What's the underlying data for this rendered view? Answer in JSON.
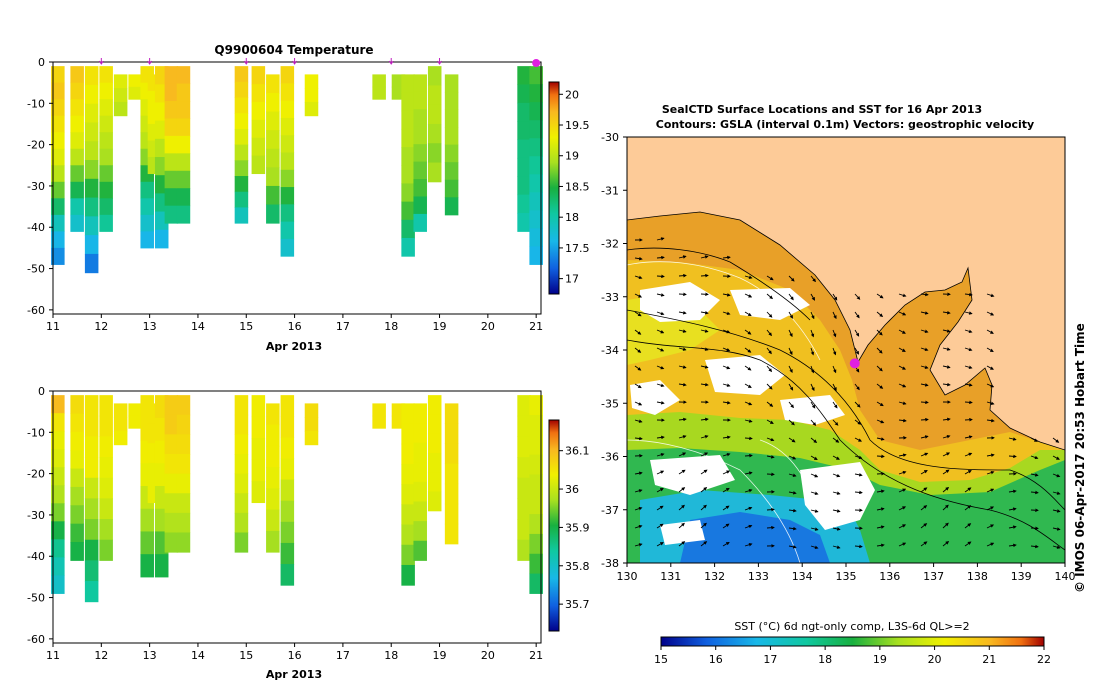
{
  "chart_data": [
    {
      "type": "heatmap",
      "title": "Q9900604  Temperature",
      "xlabel": "Apr 2013",
      "ylabel": "",
      "xlim": [
        11,
        21.1
      ],
      "ylim": [
        -61,
        0
      ],
      "x_ticks": [
        11,
        12,
        13,
        14,
        15,
        16,
        17,
        18,
        19,
        20,
        21
      ],
      "y_ticks": [
        0,
        -10,
        -20,
        -30,
        -40,
        -50,
        -60
      ],
      "profile_markers_x": [
        12,
        13,
        15,
        16,
        18,
        19,
        21
      ],
      "colorbar": {
        "min": 16.75,
        "max": 20.2,
        "ticks": [
          17,
          17.5,
          18,
          18.5,
          19,
          19.5,
          20
        ]
      },
      "profiles": [
        {
          "x": 11.1,
          "top": -1,
          "bottom": -49,
          "values": [
            19.5,
            19.6,
            19.5,
            19.4,
            19.3,
            19.2,
            19.0,
            18.7,
            18.3,
            17.9,
            17.6,
            17.4
          ]
        },
        {
          "x": 11.5,
          "top": -1,
          "bottom": -41,
          "values": [
            19.6,
            19.5,
            19.4,
            19.3,
            19.2,
            19.0,
            18.7,
            18.4,
            18.0,
            17.8
          ]
        },
        {
          "x": 11.8,
          "top": -1,
          "bottom": -51,
          "values": [
            19.4,
            19.3,
            19.2,
            19.1,
            19.0,
            18.8,
            18.5,
            18.2,
            17.9,
            17.6,
            17.3
          ]
        },
        {
          "x": 12.1,
          "top": -1,
          "bottom": -41,
          "values": [
            19.4,
            19.3,
            19.2,
            19.1,
            19.0,
            18.9,
            18.7,
            18.5,
            18.3,
            18.1
          ]
        },
        {
          "x": 12.4,
          "top": -3,
          "bottom": -13,
          "values": [
            19.2,
            19.1,
            19.0
          ]
        },
        {
          "x": 12.7,
          "top": -3,
          "bottom": -9,
          "values": [
            19.3,
            19.2
          ]
        },
        {
          "x": 12.95,
          "top": -1,
          "bottom": -45,
          "values": [
            19.4,
            19.3,
            19.2,
            19.1,
            19.0,
            18.8,
            18.5,
            18.2,
            18.0,
            17.8,
            17.6
          ]
        },
        {
          "x": 13.1,
          "top": -3,
          "bottom": -27,
          "values": [
            19.4,
            19.3,
            19.3,
            19.2,
            19.1,
            19.0
          ]
        },
        {
          "x": 13.25,
          "top": -1,
          "bottom": -45,
          "values": [
            19.5,
            19.4,
            19.3,
            19.2,
            19.0,
            18.8,
            18.5,
            18.2,
            17.9,
            17.6
          ]
        },
        {
          "x": 13.45,
          "top": -1,
          "bottom": -39,
          "values": [
            19.7,
            19.7,
            19.6,
            19.5,
            19.3,
            19.0,
            18.7,
            18.4,
            18.2
          ]
        },
        {
          "x": 13.7,
          "top": -1,
          "bottom": -39,
          "values": [
            19.7,
            19.6,
            19.6,
            19.5,
            19.3,
            19.0,
            18.7,
            18.4,
            18.2
          ]
        },
        {
          "x": 14.9,
          "top": -1,
          "bottom": -39,
          "values": [
            19.6,
            19.5,
            19.4,
            19.3,
            19.2,
            19.0,
            18.8,
            18.5,
            18.2,
            17.9
          ]
        },
        {
          "x": 15.25,
          "top": -1,
          "bottom": -27,
          "values": [
            19.5,
            19.4,
            19.3,
            19.2,
            19.1,
            19.0
          ]
        },
        {
          "x": 15.55,
          "top": -3,
          "bottom": -39,
          "values": [
            19.4,
            19.3,
            19.2,
            19.1,
            19.0,
            18.9,
            18.6,
            18.3
          ]
        },
        {
          "x": 15.85,
          "top": -1,
          "bottom": -47,
          "values": [
            19.5,
            19.4,
            19.3,
            19.2,
            19.1,
            19.0,
            18.8,
            18.5,
            18.2,
            18.0,
            17.8
          ]
        },
        {
          "x": 16.35,
          "top": -3,
          "bottom": -13,
          "values": [
            19.3,
            19.3,
            19.2
          ]
        },
        {
          "x": 17.75,
          "top": -3,
          "bottom": -9,
          "values": [
            19.0,
            19.0
          ]
        },
        {
          "x": 18.15,
          "top": -3,
          "bottom": -9,
          "values": [
            18.9,
            18.9
          ]
        },
        {
          "x": 18.35,
          "top": -3,
          "bottom": -47,
          "values": [
            19.0,
            19.0,
            19.0,
            19.0,
            18.9,
            18.9,
            18.8,
            18.6,
            18.3,
            18.0
          ]
        },
        {
          "x": 18.6,
          "top": -3,
          "bottom": -41,
          "values": [
            19.0,
            19.0,
            18.9,
            18.9,
            18.8,
            18.7,
            18.6,
            18.4,
            18.0
          ]
        },
        {
          "x": 18.9,
          "top": -1,
          "bottom": -29,
          "values": [
            18.9,
            19.0,
            19.0,
            18.9,
            18.8,
            18.9
          ]
        },
        {
          "x": 19.25,
          "top": -3,
          "bottom": -37,
          "values": [
            18.9,
            18.9,
            18.9,
            18.9,
            18.8,
            18.7,
            18.6,
            18.4
          ]
        },
        {
          "x": 20.75,
          "top": -1,
          "bottom": -41,
          "values": [
            18.5,
            18.4,
            18.3,
            18.3,
            18.2,
            18.2,
            18.2,
            18.1,
            18.0
          ]
        },
        {
          "x": 21.0,
          "top": -1,
          "bottom": -49,
          "values": [
            18.6,
            18.5,
            18.4,
            18.3,
            18.2,
            18.1,
            18.0,
            17.9,
            17.8,
            17.7,
            17.6
          ]
        }
      ]
    },
    {
      "type": "heatmap",
      "title": "",
      "xlabel": "Apr 2013",
      "ylabel": "",
      "xlim": [
        11,
        21.1
      ],
      "ylim": [
        -61,
        0
      ],
      "x_ticks": [
        11,
        12,
        13,
        14,
        15,
        16,
        17,
        18,
        19,
        20,
        21
      ],
      "y_ticks": [
        0,
        -10,
        -20,
        -30,
        -40,
        -50,
        -60
      ],
      "colorbar": {
        "min": 35.63,
        "max": 36.18,
        "ticks": [
          35.7,
          35.8,
          35.9,
          36,
          36.1
        ]
      },
      "profiles": [
        {
          "x": 11.1,
          "top": -1,
          "bottom": -49,
          "values": [
            36.1,
            36.05,
            36.03,
            36.02,
            36.0,
            35.98,
            35.95,
            35.9,
            35.85,
            35.82,
            35.8
          ]
        },
        {
          "x": 11.5,
          "top": -1,
          "bottom": -41,
          "values": [
            36.06,
            36.05,
            36.04,
            36.03,
            36.0,
            35.97,
            35.95,
            35.92,
            35.9
          ]
        },
        {
          "x": 11.8,
          "top": -1,
          "bottom": -51,
          "values": [
            36.05,
            36.05,
            36.04,
            36.04,
            36.0,
            35.97,
            35.95,
            35.9,
            35.87,
            35.84
          ]
        },
        {
          "x": 12.1,
          "top": -1,
          "bottom": -41,
          "values": [
            36.05,
            36.05,
            36.04,
            36.03,
            36.02,
            36.0,
            35.97,
            35.95
          ]
        },
        {
          "x": 12.4,
          "top": -3,
          "bottom": -13,
          "values": [
            36.05,
            36.05,
            36.04
          ]
        },
        {
          "x": 12.7,
          "top": -3,
          "bottom": -9,
          "values": [
            36.04,
            36.04
          ]
        },
        {
          "x": 12.95,
          "top": -1,
          "bottom": -45,
          "values": [
            36.05,
            36.05,
            36.04,
            36.03,
            36.0,
            35.97,
            35.94,
            35.9
          ]
        },
        {
          "x": 13.1,
          "top": -3,
          "bottom": -27,
          "values": [
            36.05,
            36.05,
            36.04,
            36.03,
            36.03
          ]
        },
        {
          "x": 13.25,
          "top": -1,
          "bottom": -45,
          "values": [
            36.06,
            36.05,
            36.04,
            36.03,
            36.0,
            35.97,
            35.93,
            35.9
          ]
        },
        {
          "x": 13.45,
          "top": -1,
          "bottom": -39,
          "values": [
            36.08,
            36.08,
            36.06,
            36.05,
            36.03,
            36.0,
            35.98,
            35.96
          ]
        },
        {
          "x": 13.7,
          "top": -1,
          "bottom": -39,
          "values": [
            36.08,
            36.07,
            36.06,
            36.05,
            36.03,
            36.0,
            35.98,
            35.96
          ]
        },
        {
          "x": 14.9,
          "top": -1,
          "bottom": -39,
          "values": [
            36.05,
            36.05,
            36.04,
            36.03,
            36.02,
            36.0,
            35.98,
            35.95
          ]
        },
        {
          "x": 15.25,
          "top": -1,
          "bottom": -27,
          "values": [
            36.04,
            36.04,
            36.03,
            36.03,
            36.02
          ]
        },
        {
          "x": 15.55,
          "top": -3,
          "bottom": -39,
          "values": [
            36.05,
            36.04,
            36.04,
            36.03,
            36.02,
            36.0,
            35.97
          ]
        },
        {
          "x": 15.85,
          "top": -1,
          "bottom": -47,
          "values": [
            36.05,
            36.05,
            36.04,
            36.03,
            36.0,
            35.97,
            35.95,
            35.92,
            35.88
          ]
        },
        {
          "x": 16.35,
          "top": -3,
          "bottom": -13,
          "values": [
            36.06,
            36.06,
            36.05
          ]
        },
        {
          "x": 17.75,
          "top": -3,
          "bottom": -9,
          "values": [
            36.05,
            36.05
          ]
        },
        {
          "x": 18.15,
          "top": -3,
          "bottom": -9,
          "values": [
            36.05,
            36.05
          ]
        },
        {
          "x": 18.35,
          "top": -3,
          "bottom": -47,
          "values": [
            36.04,
            36.04,
            36.04,
            36.03,
            36.02,
            36.0,
            35.98,
            35.95,
            35.9
          ]
        },
        {
          "x": 18.6,
          "top": -3,
          "bottom": -41,
          "values": [
            36.04,
            36.04,
            36.03,
            36.03,
            36.02,
            36.0,
            35.97,
            35.93
          ]
        },
        {
          "x": 18.9,
          "top": -1,
          "bottom": -29,
          "values": [
            36.04,
            36.04,
            36.04,
            36.03,
            36.03,
            36.02
          ]
        },
        {
          "x": 19.25,
          "top": -3,
          "bottom": -37,
          "values": [
            36.06,
            36.06,
            36.06,
            36.05,
            36.05,
            36.05,
            36.05
          ]
        },
        {
          "x": 20.75,
          "top": -1,
          "bottom": -41,
          "values": [
            36.02,
            36.02,
            36.02,
            36.01,
            36.0,
            36.0,
            36.0,
            35.98
          ]
        },
        {
          "x": 21.0,
          "top": -1,
          "bottom": -49,
          "values": [
            36.03,
            36.02,
            36.02,
            36.01,
            36.0,
            36.0,
            35.98,
            35.95,
            35.92,
            35.88
          ]
        }
      ]
    },
    {
      "type": "heatmap",
      "title": "SealCTD Surface Locations and SST for 16 Apr 2013",
      "subtitle": "Contours: GSLA (interval 0.1m) Vectors: geostrophic velocity",
      "xlim": [
        130,
        140
      ],
      "ylim": [
        -38,
        -30
      ],
      "x_ticks": [
        130,
        131,
        132,
        133,
        134,
        135,
        136,
        137,
        138,
        139,
        140
      ],
      "y_ticks": [
        -30,
        -31,
        -32,
        -33,
        -34,
        -35,
        -36,
        -37,
        -38
      ],
      "seal_location": {
        "lon": 135.2,
        "lat": -34.25
      },
      "land_color": "#fdcb98",
      "colorbar_label": "SST (°C) 6d ngt-only comp, L3S-6d QL>=2",
      "colorbar": {
        "min": 15,
        "max": 22,
        "ticks": [
          15,
          16,
          17,
          18,
          19,
          20,
          21,
          22
        ]
      },
      "side_note": "© IMOS 06-Apr-2017 20:53 Hobart Time"
    }
  ]
}
